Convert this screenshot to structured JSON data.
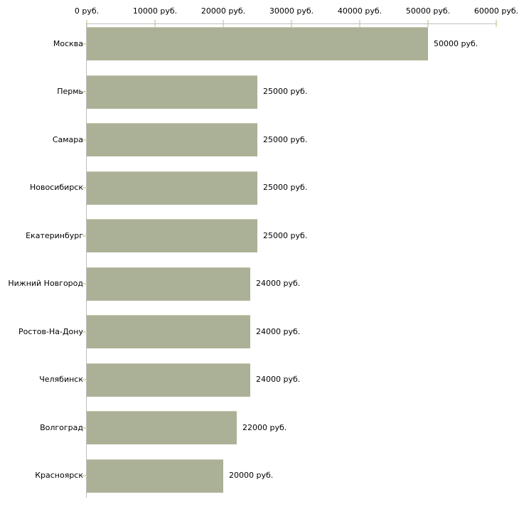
{
  "chart_data": {
    "type": "bar",
    "orientation": "horizontal",
    "title": "",
    "xlabel": "",
    "ylabel": "",
    "unit": "руб.",
    "categories": [
      "Москва",
      "Пермь",
      "Самара",
      "Новосибирск",
      "Екатеринбург",
      "Нижний Новгород",
      "Ростов-На-Дону",
      "Челябинск",
      "Волгоград",
      "Красноярск"
    ],
    "values": [
      50000,
      25000,
      25000,
      25000,
      25000,
      24000,
      24000,
      24000,
      22000,
      20000
    ],
    "value_labels": [
      "50000 руб.",
      "25000 руб.",
      "25000 руб.",
      "25000 руб.",
      "25000 руб.",
      "24000 руб.",
      "24000 руб.",
      "24000 руб.",
      "22000 руб.",
      "20000 руб."
    ],
    "x_axis": {
      "min": 0,
      "max": 60000,
      "ticks": [
        0,
        10000,
        20000,
        30000,
        40000,
        50000,
        60000
      ],
      "tick_labels": [
        "0 руб.",
        "10000 руб.",
        "20000 руб.",
        "30000 руб.",
        "40000 руб.",
        "50000 руб.",
        "60000 руб."
      ]
    },
    "grid": "off",
    "legend": "none",
    "colors": {
      "bar": "#abb196",
      "bar_edge": "#c6cab1",
      "axis_line": "#bfbfbf",
      "tick_mark": "#dcddc1",
      "category_tick": "#d7dabc",
      "text": "#000000",
      "background": "#ffffff"
    }
  }
}
